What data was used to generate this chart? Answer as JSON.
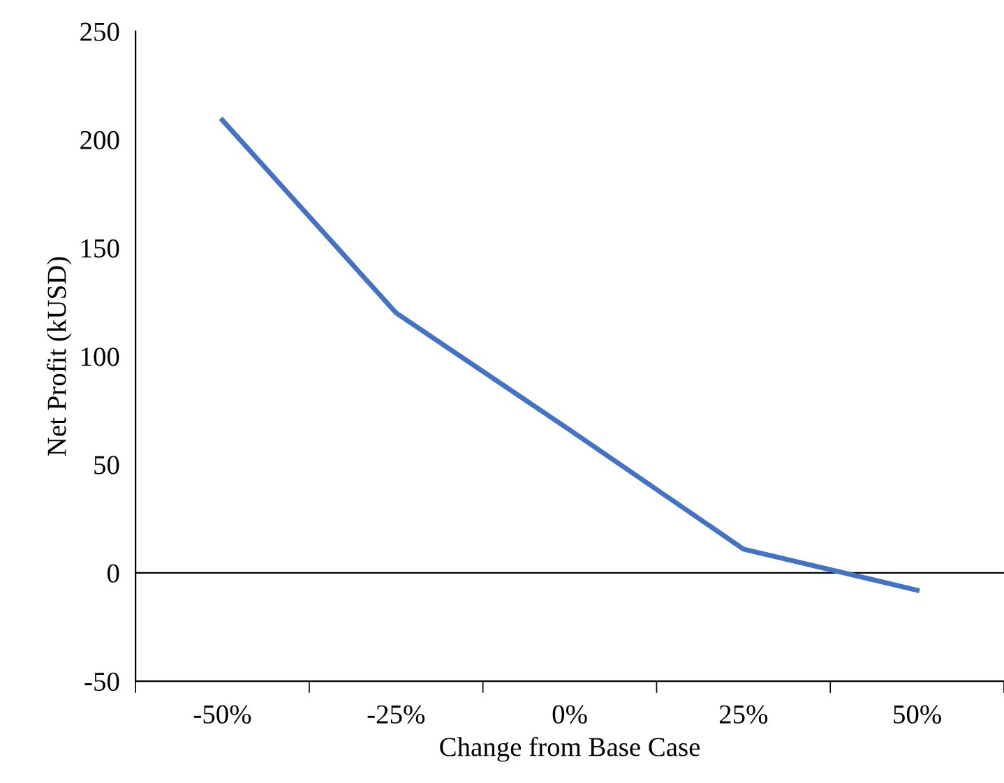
{
  "chart_data": {
    "type": "line",
    "xlabel": "Change from Base Case",
    "ylabel": "Net Profit (kUSD)",
    "categories": [
      "-50%",
      "-25%",
      "0%",
      "25%",
      "50%"
    ],
    "series": [
      {
        "color": "#4472c4",
        "values": [
          209,
          120,
          66,
          11,
          -8
        ]
      }
    ],
    "ylim": [
      -50,
      250
    ],
    "yticks": [
      -50,
      0,
      50,
      100,
      150,
      200,
      250
    ],
    "ref_lines": [
      {
        "axis": "y",
        "value": 0,
        "label": null,
        "color": "#000000"
      }
    ],
    "grid": false,
    "legend": false,
    "marker": "none",
    "line_style": "solid"
  }
}
